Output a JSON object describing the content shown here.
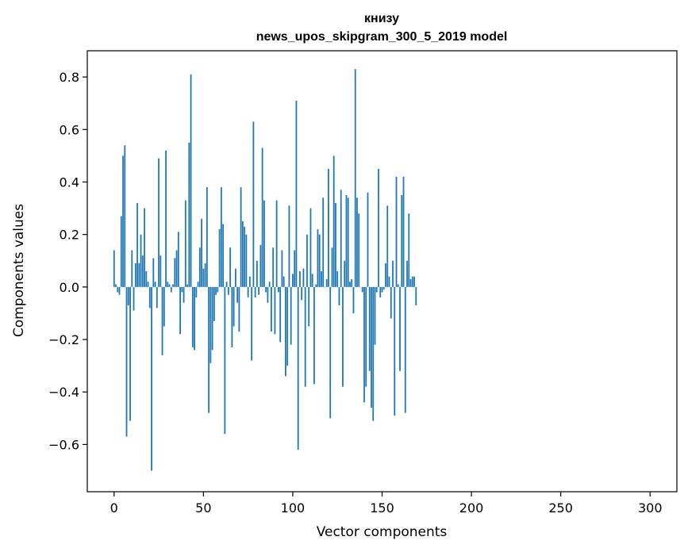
{
  "chart_data": {
    "type": "bar",
    "title": "книзу",
    "subtitle": "news_upos_skipgram_300_5_2019 model",
    "xlabel": "Vector components",
    "ylabel": "Components values",
    "xlim": [
      -15,
      315
    ],
    "ylim": [
      -0.78,
      0.9
    ],
    "xticks": [
      0,
      50,
      100,
      150,
      200,
      250,
      300
    ],
    "yticks": [
      -0.6,
      -0.4,
      -0.2,
      0.0,
      0.2,
      0.4,
      0.6,
      0.8
    ],
    "ytick_labels": [
      "−0.6",
      "−0.4",
      "−0.2",
      "0.0",
      "0.2",
      "0.4",
      "0.6",
      "0.8"
    ],
    "grid": false,
    "bar_color": "#1f77b4",
    "x_start": 0,
    "values": [
      0.14,
      0.01,
      -0.02,
      -0.03,
      0.27,
      0.5,
      0.54,
      -0.57,
      -0.07,
      -0.51,
      0.14,
      -0.09,
      0.09,
      0.32,
      0.09,
      0.2,
      0.12,
      0.3,
      0.06,
      0.02,
      -0.08,
      -0.7,
      0.11,
      0.02,
      -0.08,
      0.49,
      0.12,
      -0.26,
      -0.15,
      0.52,
      0.02,
      0.01,
      -0.02,
      0.01,
      0.11,
      0.14,
      0.21,
      -0.18,
      -0.02,
      -0.06,
      0.33,
      0.01,
      0.55,
      0.81,
      -0.23,
      -0.24,
      -0.04,
      0.02,
      0.15,
      0.26,
      0.07,
      0.09,
      0.38,
      -0.48,
      -0.29,
      -0.24,
      -0.13,
      -0.03,
      -0.02,
      0.22,
      0.38,
      0.24,
      -0.56,
      0.02,
      -0.03,
      0.15,
      -0.23,
      -0.15,
      0.07,
      -0.06,
      -0.17,
      0.38,
      0.25,
      0.23,
      0.2,
      -0.04,
      0.04,
      -0.28,
      0.63,
      -0.04,
      0.1,
      -0.03,
      0.16,
      0.53,
      0.33,
      -0.02,
      -0.06,
      0.02,
      -0.17,
      0.15,
      -0.18,
      0.33,
      -0.02,
      -0.21,
      0.14,
      0.04,
      -0.34,
      -0.3,
      0.31,
      -0.22,
      0.05,
      0.14,
      0.71,
      -0.62,
      0.06,
      -0.05,
      0.07,
      -0.38,
      0.2,
      -0.15,
      0.3,
      0.05,
      -0.37,
      0.01,
      0.22,
      0.2,
      0.06,
      0.34,
      0.0,
      0.03,
      0.45,
      -0.5,
      0.15,
      0.5,
      0.32,
      0.06,
      -0.07,
      0.37,
      -0.38,
      0.1,
      0.35,
      0.34,
      0.02,
      0.03,
      -0.1,
      0.83,
      0.34,
      0.28,
      0.0,
      -0.02,
      -0.44,
      -0.38,
      0.36,
      -0.32,
      -0.46,
      -0.51,
      -0.22,
      -0.02,
      0.45,
      -0.04,
      -0.02,
      -0.01,
      0.09,
      0.31,
      0.04,
      -0.12,
      0.1,
      -0.49,
      0.42,
      0.01,
      -0.32,
      0.35,
      0.42,
      -0.48,
      0.1,
      0.28,
      0.03,
      0.04,
      0.04,
      -0.07
    ]
  }
}
